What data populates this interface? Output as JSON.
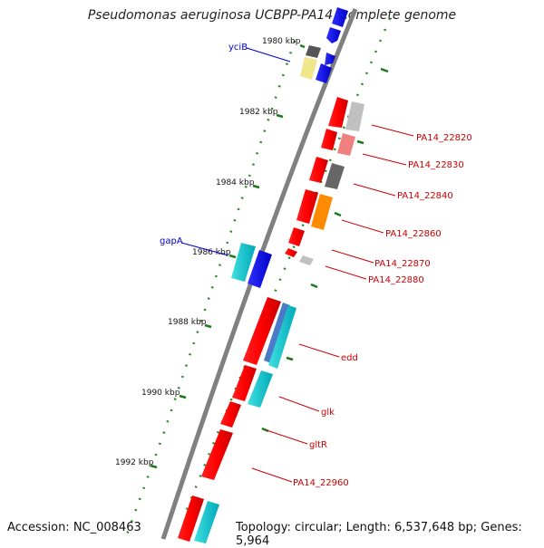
{
  "title": "Pseudomonas aeruginosa UCBPP-PA14, complete genome",
  "footer": {
    "accession": "Accession: NC_008463",
    "topology": "Topology: circular; Length: 6,537,648 bp; Genes: 5,964"
  },
  "ticks": [
    "1980 kbp",
    "1982 kbp",
    "1984 kbp",
    "1986 kbp",
    "1988 kbp",
    "1990 kbp",
    "1992 kbp"
  ],
  "labels": [
    {
      "text": "yciB",
      "color": "#0000cc"
    },
    {
      "text": "gapA",
      "color": "#0000cc"
    },
    {
      "text": "PA14_22820",
      "color": "#cc0000"
    },
    {
      "text": "PA14_22830",
      "color": "#cc0000"
    },
    {
      "text": "PA14_22840",
      "color": "#cc0000"
    },
    {
      "text": "PA14_22860",
      "color": "#cc0000"
    },
    {
      "text": "PA14_22870",
      "color": "#cc0000"
    },
    {
      "text": "PA14_22880",
      "color": "#cc0000"
    },
    {
      "text": "edd",
      "color": "#cc0000"
    },
    {
      "text": "glk",
      "color": "#cc0000"
    },
    {
      "text": "gltR",
      "color": "#cc0000"
    },
    {
      "text": "PA14_22960",
      "color": "#cc0000"
    }
  ]
}
